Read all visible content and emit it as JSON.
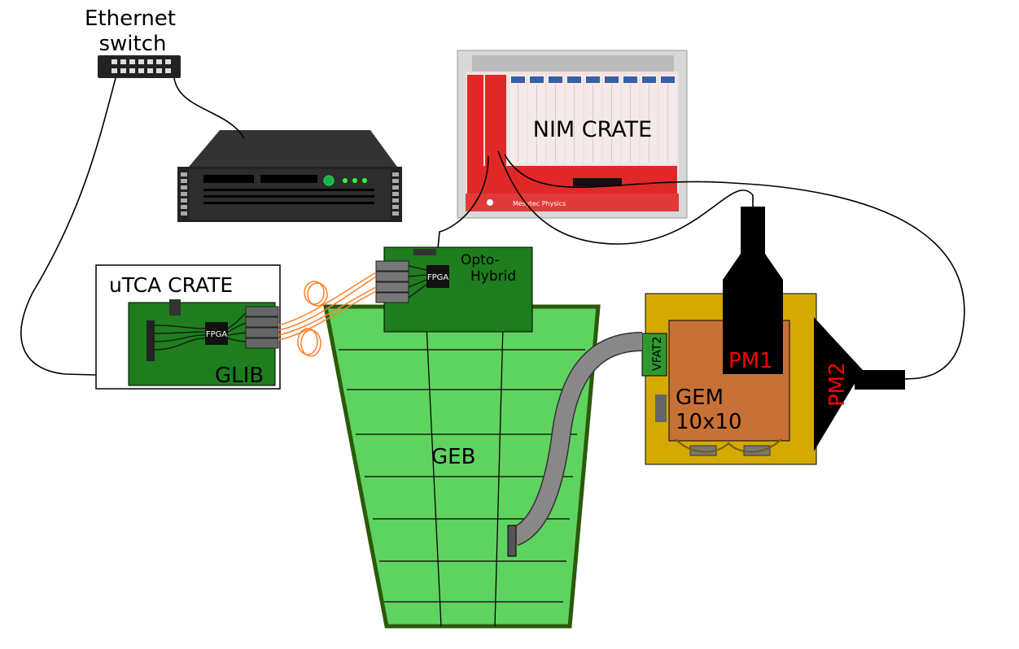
{
  "labels": {
    "ethernet_line1": "Ethernet",
    "ethernet_line2": "switch",
    "nim_crate": "NIM CRATE",
    "nim_brand": "Mesytec Physics",
    "utca_crate": "uTCA CRATE",
    "glib": "GLIB",
    "glib_fpga": "FPGA",
    "opto_line1": "Opto-",
    "opto_line2": "Hybrid",
    "opto_fpga": "FPGA",
    "geb": "GEB",
    "vfat2": "VFAT2",
    "gem_line1": "GEM",
    "gem_line2": "10x10",
    "pm1": "PM1",
    "pm2": "PM2"
  },
  "colors": {
    "board_green": "#1e7d1e",
    "geb_fill": "#5fd35f",
    "geb_border": "#2a5a0a",
    "gem_copper": "#c87137",
    "gem_frame": "#d4aa00",
    "nim_red": "#e02828",
    "fiber_orange": "#ff7f2a",
    "pm_label_red": "#ff0000",
    "cable_gray": "#888888"
  },
  "icons": [
    "ethernet-switch-icon",
    "server-icon",
    "fpga-chip-icon",
    "connector-icon"
  ]
}
